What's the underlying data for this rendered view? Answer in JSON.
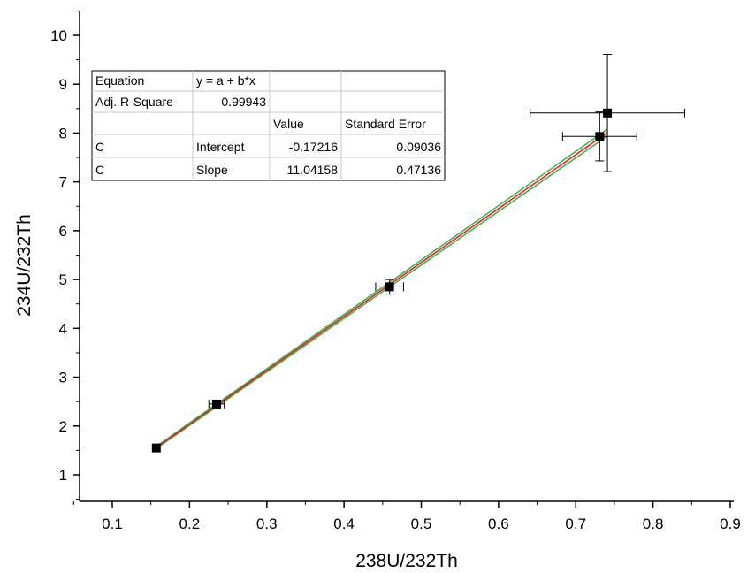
{
  "chart_data": {
    "type": "scatter",
    "xlabel": "238U/232Th",
    "ylabel": "234U/232Th",
    "xlim": [
      0.05,
      0.9
    ],
    "ylim": [
      0.3,
      10.5
    ],
    "x_ticks": [
      0.1,
      0.2,
      0.3,
      0.4,
      0.5,
      0.6,
      0.7,
      0.8,
      0.9
    ],
    "y_ticks": [
      1,
      2,
      3,
      4,
      5,
      6,
      7,
      8,
      9,
      10
    ],
    "grid": false,
    "points": [
      {
        "x": 0.157,
        "y": 1.55,
        "xerr": 0.0,
        "yerr": 0.0
      },
      {
        "x": 0.235,
        "y": 2.45,
        "xerr": 0.01,
        "yerr": 0.05
      },
      {
        "x": 0.459,
        "y": 4.85,
        "xerr": 0.018,
        "yerr": 0.15
      },
      {
        "x": 0.731,
        "y": 7.93,
        "xerr": 0.048,
        "yerr": 0.5
      },
      {
        "x": 0.741,
        "y": 8.41,
        "xerr": 0.1,
        "yerr": 1.2
      }
    ],
    "fit": {
      "intercept": -0.17216,
      "slope": 11.04158,
      "x_range": [
        0.157,
        0.741
      ]
    },
    "colors": {
      "fit_line": "#d62728",
      "confidence_band": "#4caf50",
      "points": "#000000"
    },
    "table": {
      "rows": [
        [
          "Equation",
          "y = a + b*x",
          "",
          ""
        ],
        [
          "Adj. R-Square",
          "0.99943",
          "",
          ""
        ],
        [
          "",
          "",
          "Value",
          "Standard Error"
        ],
        [
          "C",
          "Intercept",
          "-0.17216",
          "0.09036"
        ],
        [
          "C",
          "Slope",
          "11.04158",
          "0.47136"
        ]
      ]
    }
  }
}
